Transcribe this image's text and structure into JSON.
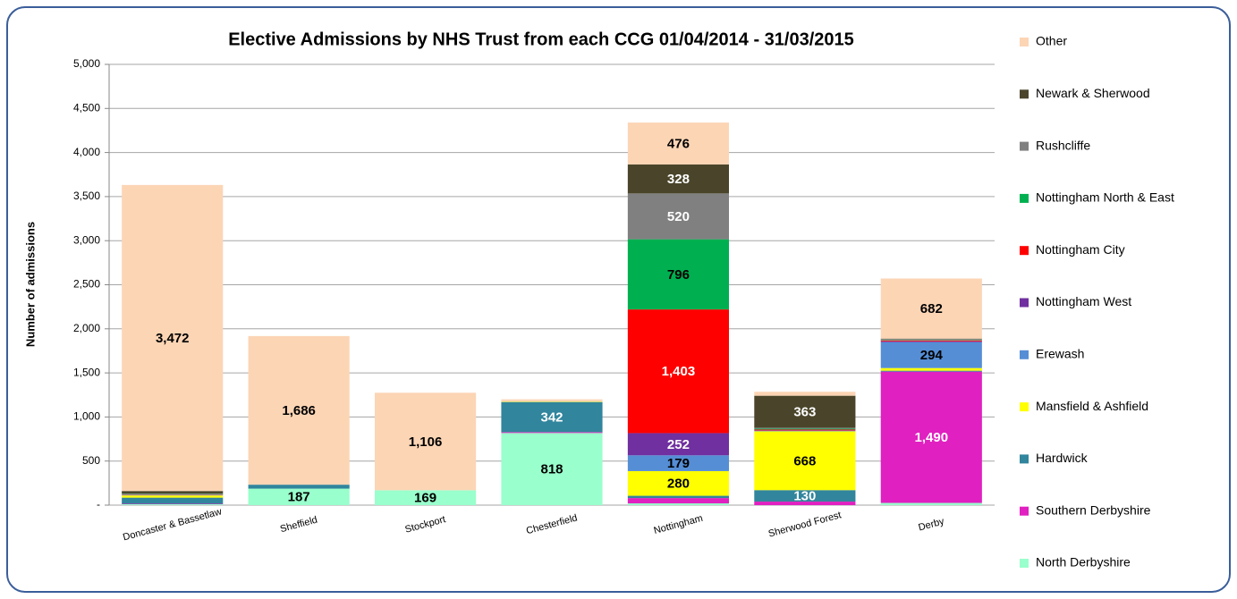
{
  "chart_data": {
    "type": "stacked_bar",
    "title": "Elective Admissions by NHS Trust from each CCG  01/04/2014 - 31/03/2015",
    "y_label": "Number of admissions",
    "categories": [
      "Doncaster & Bassetlaw",
      "Sheffield",
      "Stockport",
      "Chesterfield",
      "Nottingham",
      "Sherwood Forest",
      "Derby"
    ],
    "ylim": [
      0,
      5000
    ],
    "yticks": [
      {
        "value": 0,
        "label": "-"
      },
      500,
      {
        "value": 1000,
        "label": "1,000"
      },
      {
        "value": 1500,
        "label": "1,500"
      },
      {
        "value": 2000,
        "label": "2,000"
      },
      {
        "value": 2500,
        "label": "2,500"
      },
      {
        "value": 3000,
        "label": "3,000"
      },
      {
        "value": 3500,
        "label": "3,500"
      },
      {
        "value": 4000,
        "label": "4,000"
      },
      {
        "value": 4500,
        "label": "4,500"
      },
      {
        "value": 5000,
        "label": "5,000"
      }
    ],
    "grid": true,
    "legend": "right",
    "series": [
      {
        "name": "North Derbyshire",
        "color": "#99ffcc",
        "label_color": "#000000",
        "values": [
          10,
          187,
          169,
          818,
          20,
          0,
          25
        ],
        "value_labels": [
          null,
          "187",
          "169",
          "818",
          null,
          null,
          null
        ]
      },
      {
        "name": "Southern Derbyshire",
        "color": "#e020c0",
        "label_color": "#ffffff",
        "values": [
          5,
          0,
          0,
          10,
          60,
          40,
          1490
        ],
        "value_labels": [
          null,
          null,
          null,
          null,
          null,
          null,
          "1,490"
        ]
      },
      {
        "name": "Hardwick",
        "color": "#31859c",
        "label_color": "#ffffff",
        "values": [
          70,
          45,
          0,
          342,
          26,
          130,
          10
        ],
        "value_labels": [
          null,
          null,
          null,
          "342",
          null,
          "130",
          null
        ]
      },
      {
        "name": "Mansfield & Ashfield",
        "color": "#ffff00",
        "label_color": "#000000",
        "values": [
          25,
          0,
          0,
          5,
          280,
          668,
          30
        ],
        "value_labels": [
          null,
          null,
          null,
          null,
          "280",
          "668",
          null
        ]
      },
      {
        "name": "Erewash",
        "color": "#558ed5",
        "label_color": "#000000",
        "values": [
          5,
          0,
          0,
          0,
          179,
          5,
          294
        ],
        "value_labels": [
          null,
          null,
          null,
          null,
          "179",
          null,
          "294"
        ]
      },
      {
        "name": "Nottingham West",
        "color": "#7030a0",
        "label_color": "#ffffff",
        "values": [
          0,
          0,
          0,
          0,
          252,
          5,
          10
        ],
        "value_labels": [
          null,
          null,
          null,
          null,
          "252",
          null,
          null
        ]
      },
      {
        "name": "Nottingham City",
        "color": "#ff0000",
        "label_color": "#ffffff",
        "values": [
          5,
          0,
          0,
          0,
          1403,
          10,
          10
        ],
        "value_labels": [
          null,
          null,
          null,
          null,
          "1,403",
          null,
          null
        ]
      },
      {
        "name": "Nottingham North & East",
        "color": "#00b050",
        "label_color": "#000000",
        "values": [
          5,
          0,
          0,
          0,
          796,
          10,
          5
        ],
        "value_labels": [
          null,
          null,
          null,
          null,
          "796",
          null,
          null
        ]
      },
      {
        "name": "Rushcliffe",
        "color": "#808080",
        "label_color": "#ffffff",
        "values": [
          5,
          0,
          0,
          0,
          520,
          10,
          10
        ],
        "value_labels": [
          null,
          null,
          null,
          null,
          "520",
          null,
          null
        ]
      },
      {
        "name": "Newark & Sherwood",
        "color": "#4a452a",
        "label_color": "#ffffff",
        "values": [
          30,
          0,
          0,
          0,
          328,
          363,
          5
        ],
        "value_labels": [
          null,
          null,
          null,
          null,
          "328",
          "363",
          null
        ]
      },
      {
        "name": "Other",
        "color": "#fcd5b5",
        "label_color": "#000000",
        "values": [
          3472,
          1686,
          1106,
          25,
          476,
          45,
          682
        ],
        "value_labels": [
          "3,472",
          "1,686",
          "1,106",
          null,
          "476",
          null,
          "682"
        ]
      }
    ]
  }
}
